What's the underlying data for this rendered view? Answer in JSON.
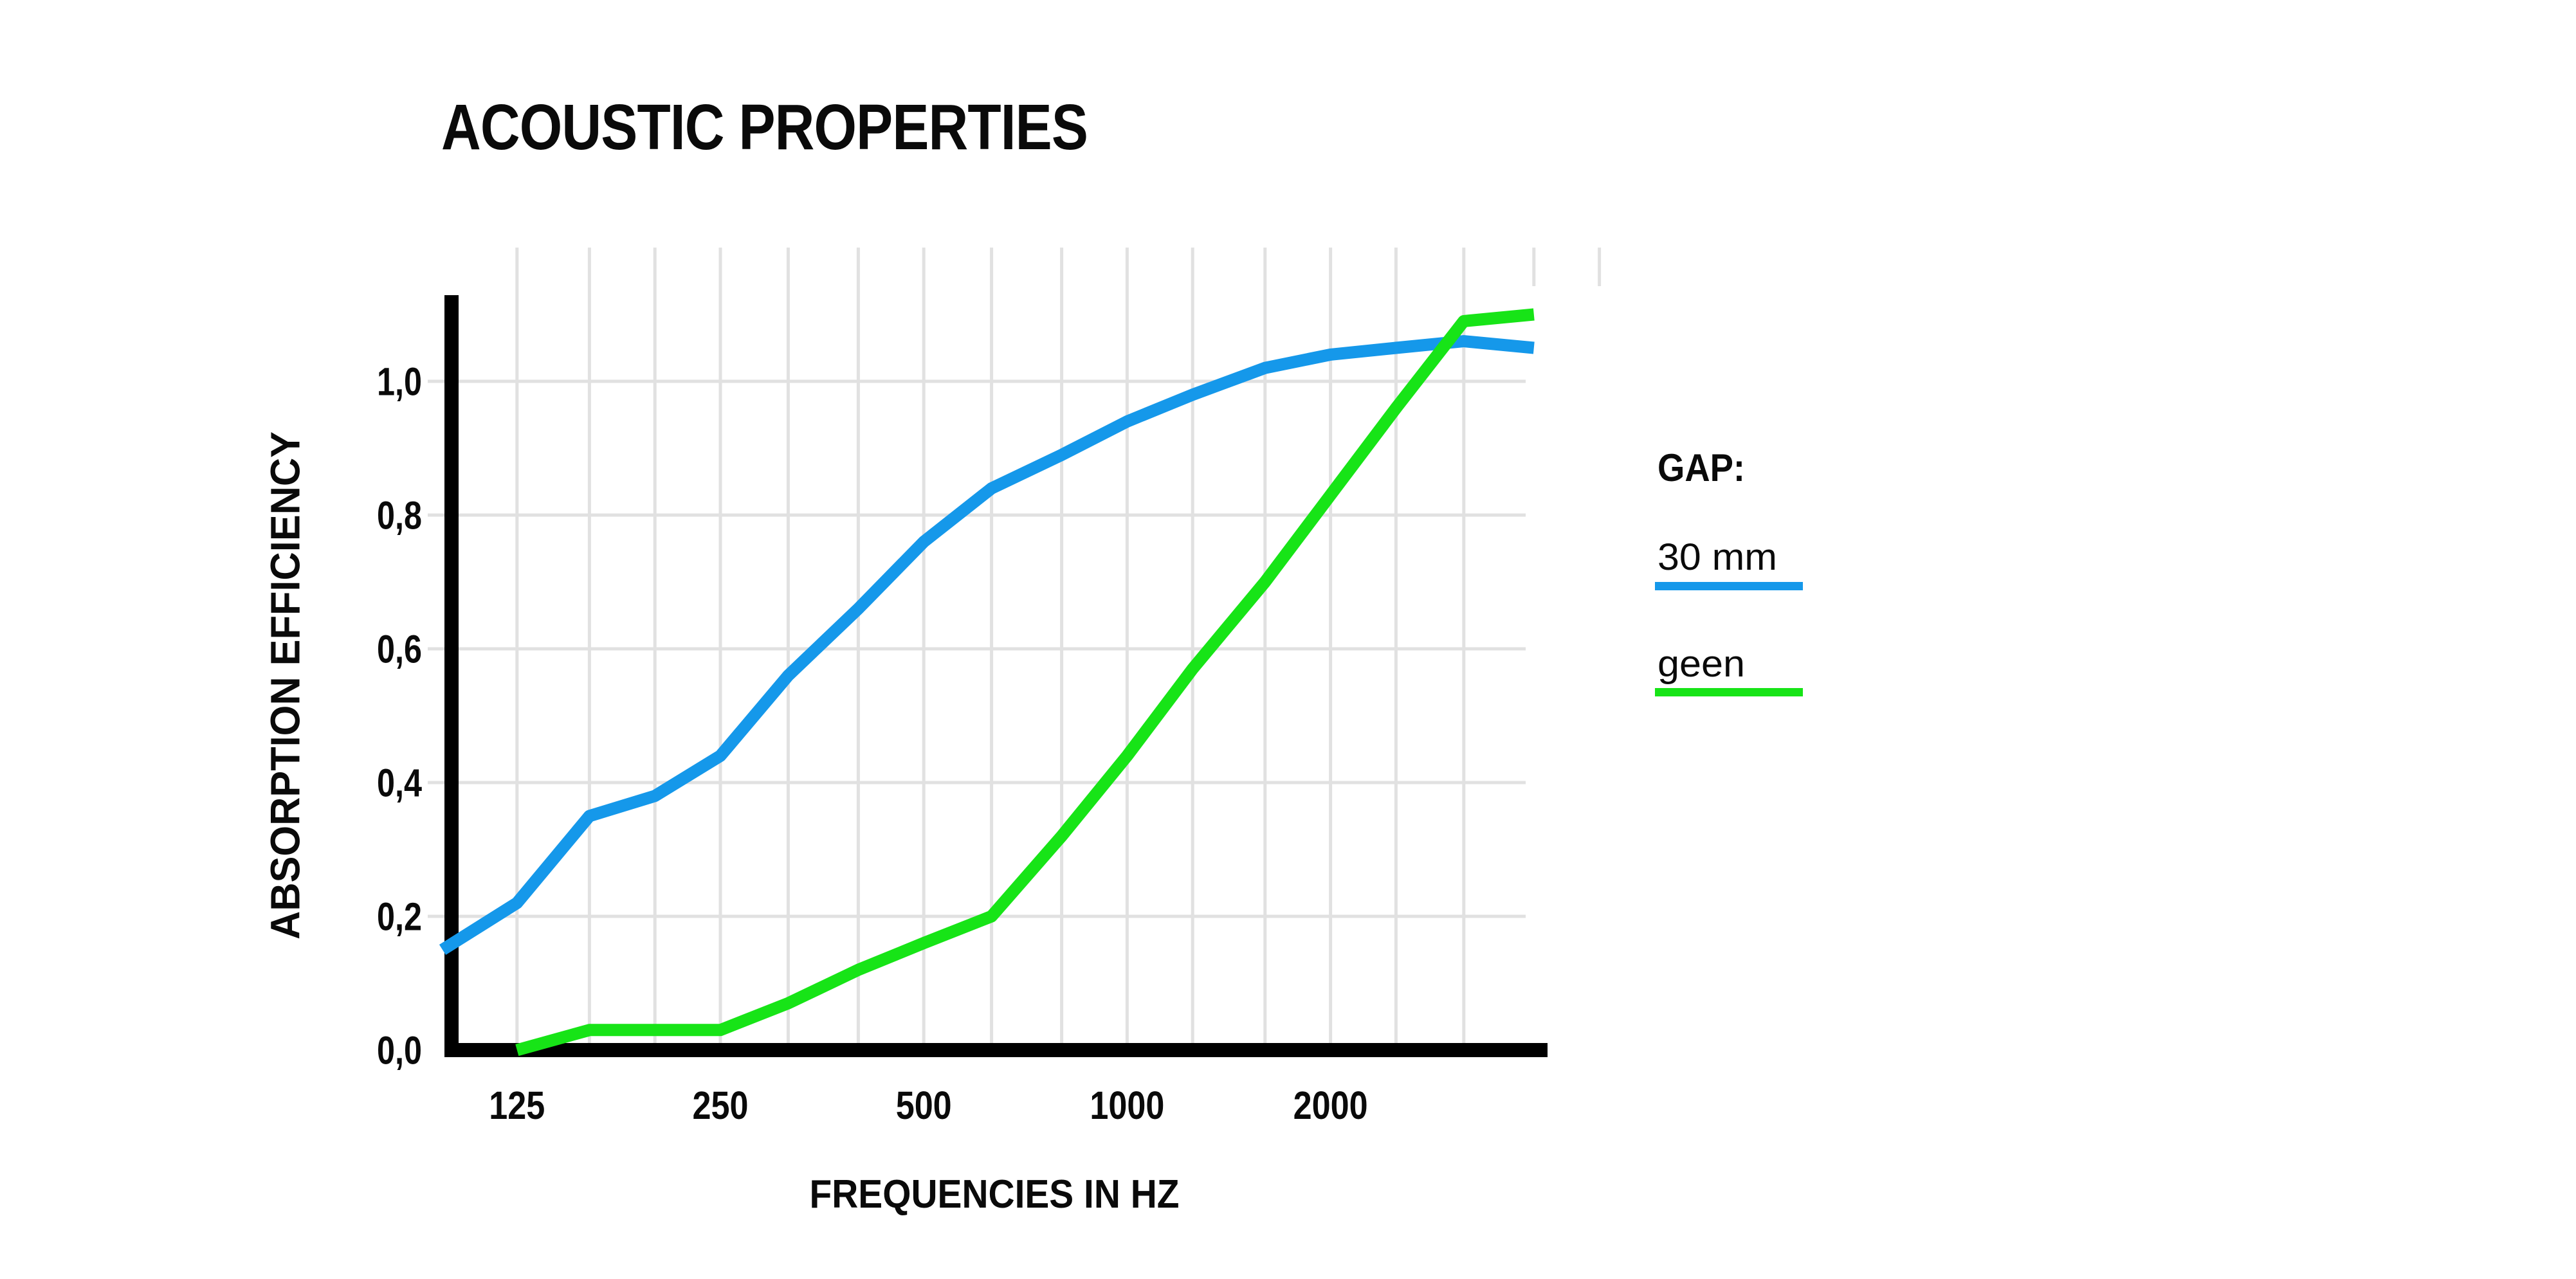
{
  "page": {
    "background": "#FFFFFF"
  },
  "title": "ACOUSTIC PROPERTIES",
  "legend": {
    "heading": "GAP:",
    "items": [
      {
        "label": "30 mm",
        "color": "#1598EA"
      },
      {
        "label": "geen",
        "color": "#17E417"
      }
    ]
  },
  "chart_data": {
    "type": "line",
    "title": "ACOUSTIC PROPERTIES",
    "xlabel": "FREQUENCIES IN HZ",
    "ylabel": "ABSORPTION EFFICIENCY",
    "x_scale": "log",
    "xlim_hz": [
      100,
      4000
    ],
    "ylim": [
      0,
      1.2
    ],
    "grid": true,
    "legend_position": "right",
    "decimal_separator": ",",
    "x_ticks": [
      {
        "hz": 125,
        "label": "125"
      },
      {
        "hz": 250,
        "label": "250"
      },
      {
        "hz": 500,
        "label": "500"
      },
      {
        "hz": 1000,
        "label": "1000"
      },
      {
        "hz": 2000,
        "label": "2000"
      }
    ],
    "y_ticks": [
      {
        "value": 0.0,
        "label": "0,0"
      },
      {
        "value": 0.2,
        "label": "0,2"
      },
      {
        "value": 0.4,
        "label": "0,4"
      },
      {
        "value": 0.6,
        "label": "0,6"
      },
      {
        "value": 0.8,
        "label": "0,8"
      },
      {
        "value": 1.0,
        "label": "1,0"
      }
    ],
    "frequencies_hz": [
      100,
      125,
      160,
      200,
      250,
      315,
      400,
      500,
      630,
      800,
      1000,
      1250,
      1600,
      2000,
      2500,
      3150,
      4000
    ],
    "series": [
      {
        "name": "30 mm",
        "color": "#1598EA",
        "values": [
          0.15,
          0.22,
          0.35,
          0.38,
          0.44,
          0.56,
          0.66,
          0.76,
          0.84,
          0.89,
          0.94,
          0.98,
          1.02,
          1.04,
          1.05,
          1.06,
          1.05
        ]
      },
      {
        "name": "geen",
        "color": "#17E417",
        "values": [
          null,
          0.0,
          0.03,
          0.03,
          0.03,
          0.07,
          0.12,
          0.16,
          0.2,
          0.32,
          0.44,
          0.57,
          0.7,
          0.83,
          0.96,
          1.09,
          1.1
        ]
      }
    ]
  }
}
